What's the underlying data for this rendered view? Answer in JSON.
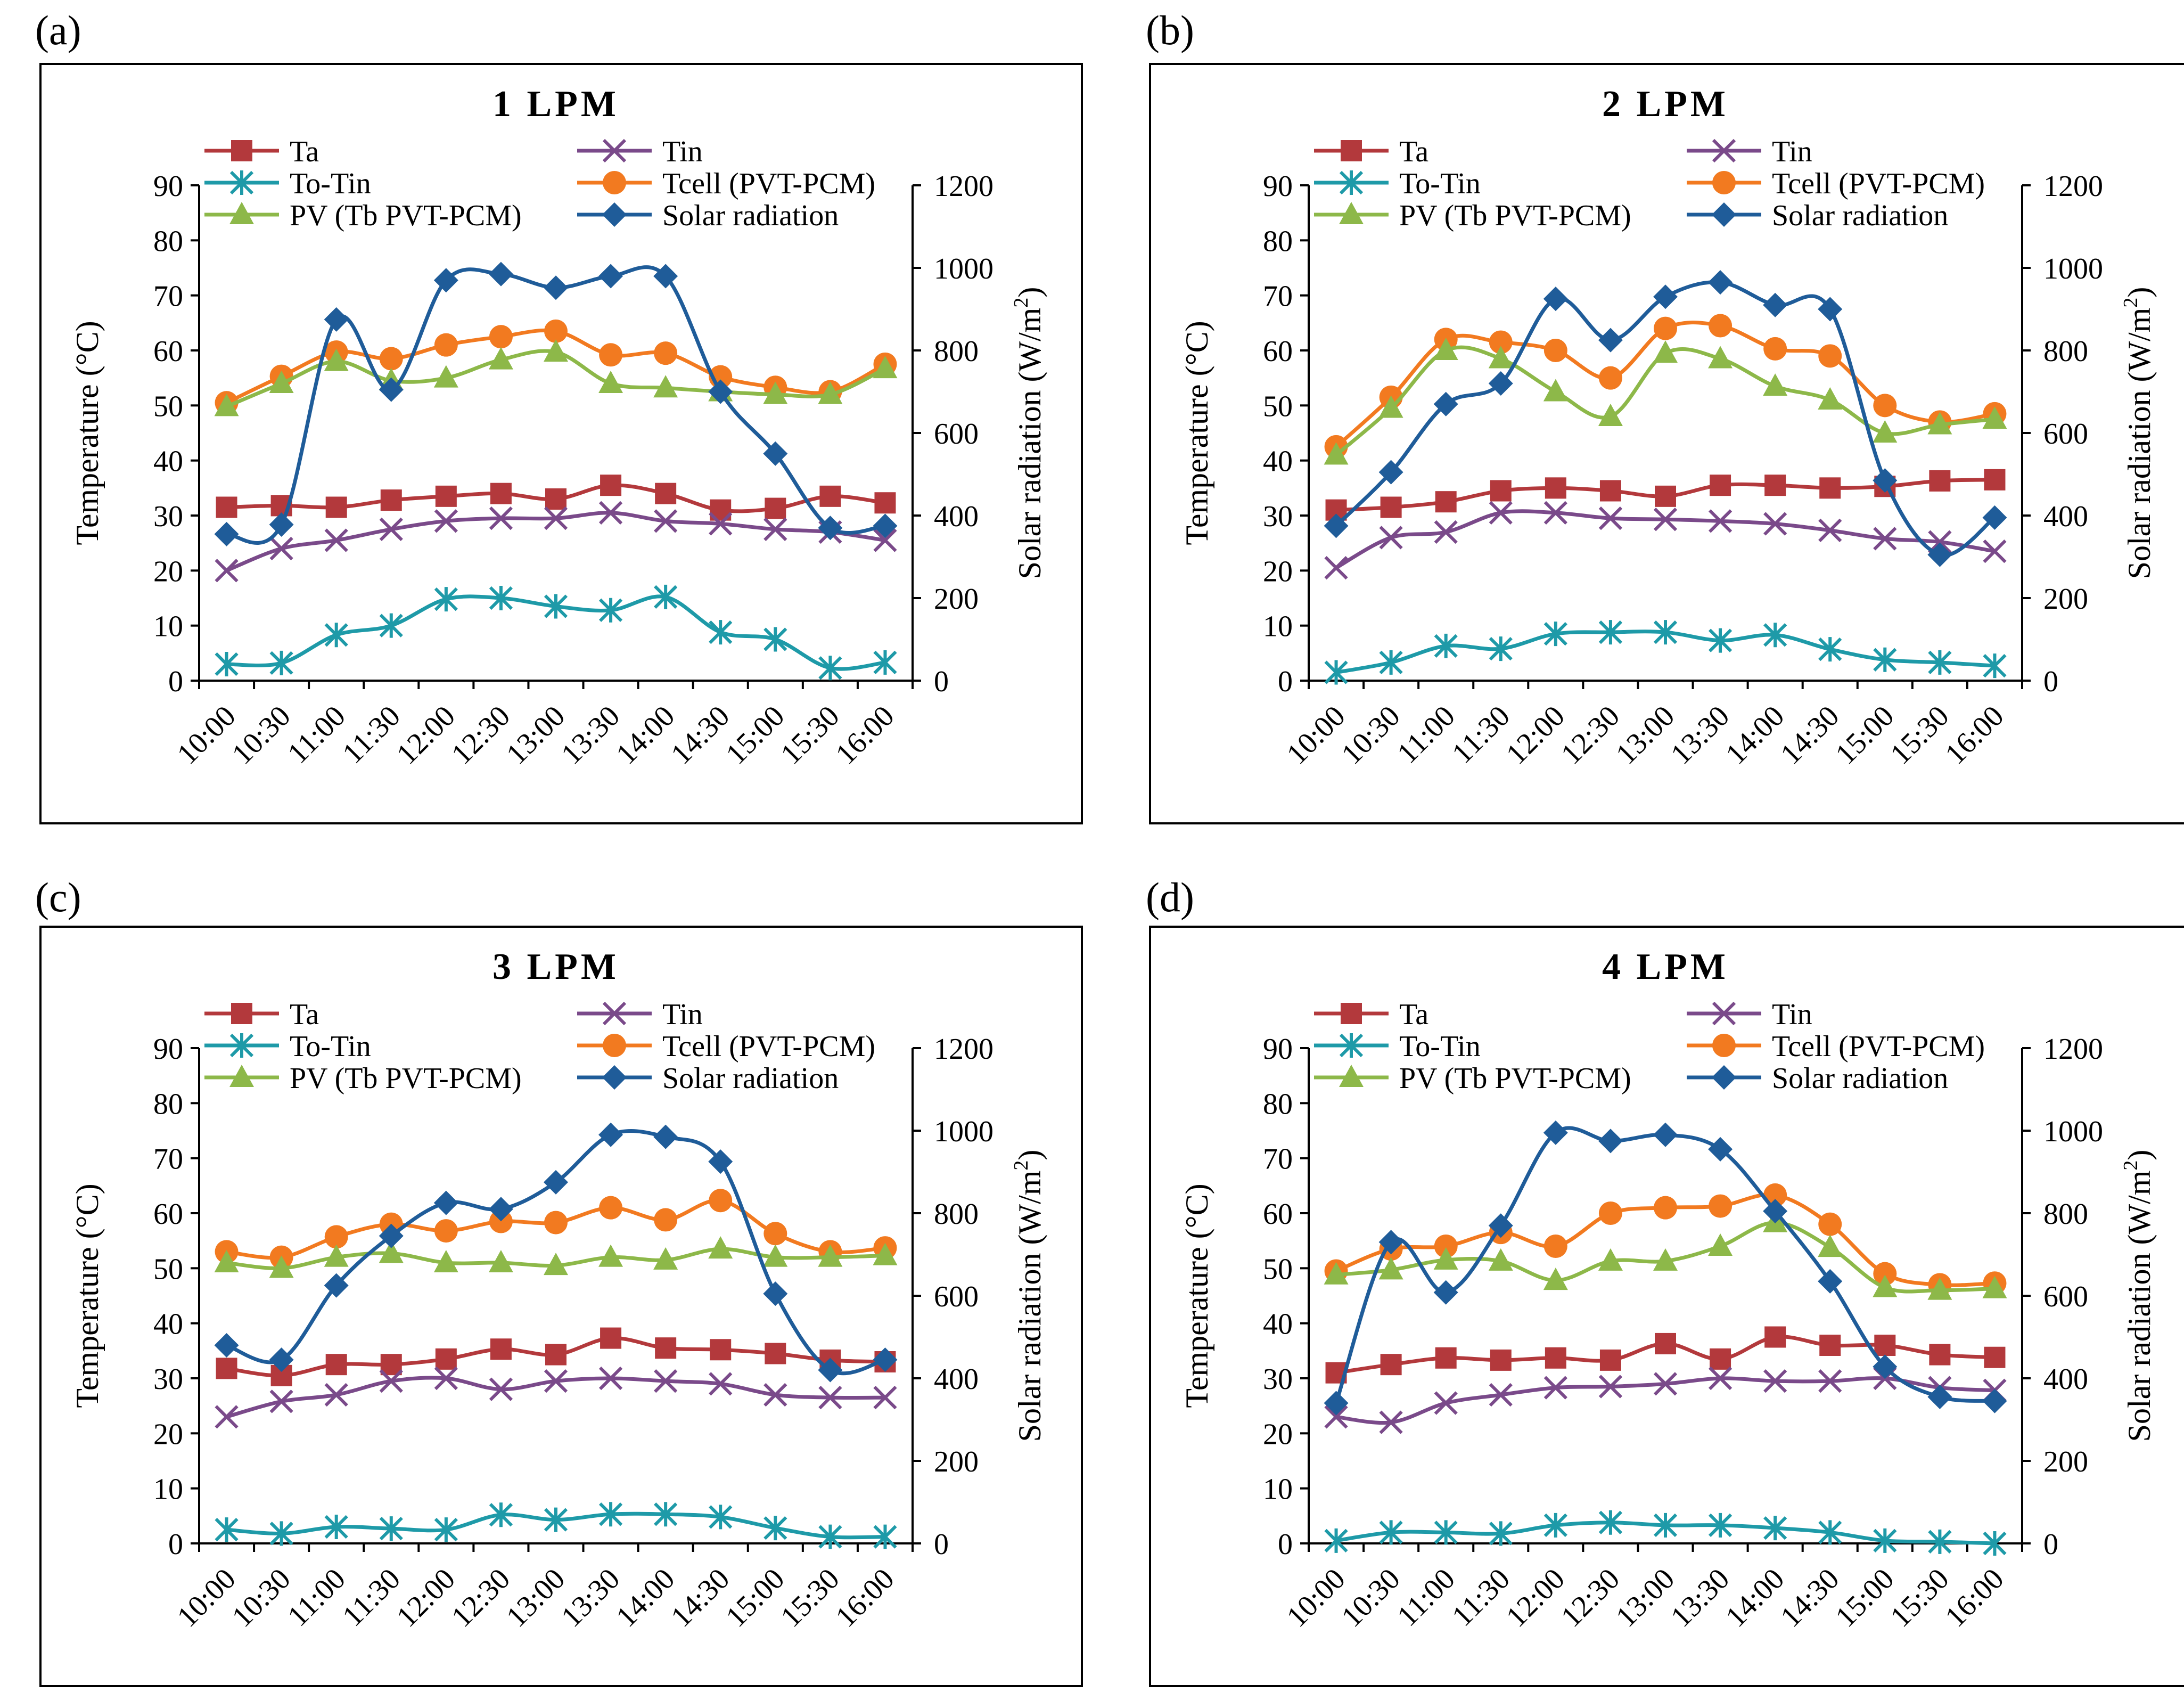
{
  "charts": [
    {
      "panel_label": "(a)",
      "title": "1 LPM",
      "ylabel_left": "Temperature (°C)",
      "ylabel_right_base": "Solar radiation (W/m",
      "ylabel_right_sup": "2",
      "ylabel_right_end": ")"
    },
    {
      "panel_label": "(b)",
      "title": "2 LPM",
      "ylabel_left": "Temperature (°C)",
      "ylabel_right_base": "Solar radiation (W/m",
      "ylabel_right_sup": "2",
      "ylabel_right_end": ")"
    },
    {
      "panel_label": "(c)",
      "title": "3 LPM",
      "ylabel_left": "Temperature (°C)",
      "ylabel_right_base": "Solar radiation (W/m",
      "ylabel_right_sup": "2",
      "ylabel_right_end": ")"
    },
    {
      "panel_label": "(d)",
      "title": "4 LPM",
      "ylabel_left": "Temperature (°C)",
      "ylabel_right_base": "Solar radiation (W/m",
      "ylabel_right_sup": "2",
      "ylabel_right_end": ")"
    }
  ],
  "chart_data": [
    {
      "type": "line",
      "title": "1 LPM",
      "categories": [
        "10:00",
        "10:30",
        "11:00",
        "11:30",
        "12:00",
        "12:30",
        "13:00",
        "13:30",
        "14:00",
        "14:30",
        "15:00",
        "15:30",
        "16:00"
      ],
      "ylabel": "Temperature (°C)",
      "ylim": [
        0,
        90
      ],
      "yticks": [
        0,
        10,
        20,
        30,
        40,
        50,
        60,
        70,
        80,
        90
      ],
      "y2label": "Solar radiation (W/m2)",
      "y2lim": [
        0,
        1200
      ],
      "y2ticks": [
        0,
        200,
        400,
        600,
        800,
        1000,
        1200
      ],
      "legend_position": "top",
      "series": [
        {
          "name": "Ta",
          "axis": "left",
          "color": "#B3393C",
          "marker": "square",
          "values": [
            31.5,
            31.8,
            31.5,
            32.8,
            33.5,
            34.0,
            33.0,
            35.5,
            34.0,
            31.0,
            31.3,
            33.5,
            32.3
          ]
        },
        {
          "name": "Tin",
          "axis": "left",
          "color": "#7A4A8A",
          "marker": "x",
          "values": [
            20.0,
            24.0,
            25.5,
            27.5,
            29.0,
            29.5,
            29.5,
            30.5,
            29.0,
            28.5,
            27.5,
            27.0,
            25.5
          ]
        },
        {
          "name": "To-Tin",
          "axis": "left",
          "color": "#1E9AA8",
          "marker": "star",
          "values": [
            3.0,
            3.2,
            8.3,
            10.0,
            14.8,
            15.0,
            13.5,
            12.8,
            15.2,
            8.8,
            7.5,
            2.3,
            3.3
          ]
        },
        {
          "name": "Tcell (PVT-PCM)",
          "axis": "left",
          "color": "#F27A20",
          "marker": "circle",
          "values": [
            50.5,
            55.3,
            59.7,
            58.5,
            61.0,
            62.5,
            63.5,
            59.2,
            59.5,
            55.2,
            53.3,
            52.5,
            57.5
          ]
        },
        {
          "name": "PV (Tb PVT-PCM)",
          "axis": "left",
          "color": "#8DB849",
          "marker": "triangle",
          "values": [
            49.8,
            54.0,
            58.0,
            54.5,
            55.0,
            58.3,
            59.7,
            54.0,
            53.2,
            52.5,
            52.0,
            52.0,
            56.7
          ]
        },
        {
          "name": "Solar radiation",
          "axis": "right",
          "color": "#1F5C99",
          "marker": "diamond",
          "values": [
            355,
            378,
            875,
            705,
            970,
            985,
            952,
            980,
            980,
            700,
            550,
            370,
            375
          ]
        }
      ]
    },
    {
      "type": "line",
      "title": "2 LPM",
      "categories": [
        "10:00",
        "10:30",
        "11:00",
        "11:30",
        "12:00",
        "12:30",
        "13:00",
        "13:30",
        "14:00",
        "14:30",
        "15:00",
        "15:30",
        "16:00"
      ],
      "ylabel": "Temperature (°C)",
      "ylim": [
        0,
        90
      ],
      "yticks": [
        0,
        10,
        20,
        30,
        40,
        50,
        60,
        70,
        80,
        90
      ],
      "y2label": "Solar radiation (W/m2)",
      "y2lim": [
        0,
        1200
      ],
      "y2ticks": [
        0,
        200,
        400,
        600,
        800,
        1000,
        1200
      ],
      "legend_position": "top",
      "series": [
        {
          "name": "Ta",
          "axis": "left",
          "color": "#B3393C",
          "marker": "square",
          "values": [
            31.0,
            31.5,
            32.5,
            34.5,
            35.0,
            34.5,
            33.5,
            35.5,
            35.5,
            35.0,
            35.3,
            36.3,
            36.5
          ]
        },
        {
          "name": "Tin",
          "axis": "left",
          "color": "#7A4A8A",
          "marker": "x",
          "values": [
            20.5,
            26.0,
            27.0,
            30.5,
            30.5,
            29.5,
            29.3,
            29.0,
            28.5,
            27.3,
            25.8,
            25.2,
            23.5
          ]
        },
        {
          "name": "To-Tin",
          "axis": "left",
          "color": "#1E9AA8",
          "marker": "star",
          "values": [
            1.5,
            3.3,
            6.3,
            5.8,
            8.5,
            8.8,
            8.8,
            7.3,
            8.3,
            5.7,
            3.8,
            3.3,
            2.7
          ]
        },
        {
          "name": "Tcell (PVT-PCM)",
          "axis": "left",
          "color": "#F27A20",
          "marker": "circle",
          "values": [
            42.5,
            51.5,
            62.0,
            61.5,
            60.0,
            55.0,
            64.0,
            64.5,
            60.3,
            59.0,
            50.0,
            47.0,
            48.5
          ]
        },
        {
          "name": "PV (Tb PVT-PCM)",
          "axis": "left",
          "color": "#8DB849",
          "marker": "triangle",
          "values": [
            41.0,
            49.5,
            60.0,
            58.5,
            52.5,
            48.0,
            59.5,
            58.5,
            53.5,
            51.0,
            45.0,
            46.5,
            47.5
          ]
        },
        {
          "name": "Solar radiation",
          "axis": "right",
          "color": "#1F5C99",
          "marker": "diamond",
          "values": [
            375,
            505,
            670,
            720,
            925,
            825,
            930,
            965,
            910,
            900,
            485,
            305,
            395
          ]
        }
      ]
    },
    {
      "type": "line",
      "title": "3 LPM",
      "categories": [
        "10:00",
        "10:30",
        "11:00",
        "11:30",
        "12:00",
        "12:30",
        "13:00",
        "13:30",
        "14:00",
        "14:30",
        "15:00",
        "15:30",
        "16:00"
      ],
      "ylabel": "Temperature (°C)",
      "ylim": [
        0,
        90
      ],
      "yticks": [
        0,
        10,
        20,
        30,
        40,
        50,
        60,
        70,
        80,
        90
      ],
      "y2label": "Solar radiation (W/m2)",
      "y2lim": [
        0,
        1200
      ],
      "y2ticks": [
        0,
        200,
        400,
        600,
        800,
        1000,
        1200
      ],
      "legend_position": "top",
      "series": [
        {
          "name": "Ta",
          "axis": "left",
          "color": "#B3393C",
          "marker": "square",
          "values": [
            31.8,
            30.5,
            32.5,
            32.5,
            33.5,
            35.3,
            34.3,
            37.3,
            35.5,
            35.2,
            34.5,
            33.3,
            33.0
          ]
        },
        {
          "name": "Tin",
          "axis": "left",
          "color": "#7A4A8A",
          "marker": "x",
          "values": [
            23.0,
            25.8,
            27.0,
            29.5,
            30.0,
            28.0,
            29.5,
            30.0,
            29.5,
            29.0,
            27.0,
            26.5,
            26.5
          ]
        },
        {
          "name": "To-Tin",
          "axis": "left",
          "color": "#1E9AA8",
          "marker": "star",
          "values": [
            2.5,
            1.8,
            3.0,
            2.7,
            2.5,
            5.2,
            4.3,
            5.3,
            5.3,
            4.8,
            2.8,
            1.2,
            1.2
          ]
        },
        {
          "name": "Tcell (PVT-PCM)",
          "axis": "left",
          "color": "#F27A20",
          "marker": "circle",
          "values": [
            53.0,
            52.0,
            55.7,
            58.0,
            56.8,
            58.5,
            58.3,
            61.0,
            58.8,
            62.3,
            56.3,
            53.0,
            53.7
          ]
        },
        {
          "name": "PV (Tb PVT-PCM)",
          "axis": "left",
          "color": "#8DB849",
          "marker": "triangle",
          "values": [
            51.0,
            50.0,
            52.0,
            52.7,
            51.0,
            51.0,
            50.5,
            52.0,
            51.5,
            53.5,
            52.0,
            52.0,
            52.3
          ]
        },
        {
          "name": "Solar radiation",
          "axis": "right",
          "color": "#1F5C99",
          "marker": "diamond",
          "values": [
            480,
            445,
            625,
            745,
            825,
            810,
            875,
            990,
            985,
            925,
            605,
            420,
            445
          ]
        }
      ]
    },
    {
      "type": "line",
      "title": "4 LPM",
      "categories": [
        "10:00",
        "10:30",
        "11:00",
        "11:30",
        "12:00",
        "12:30",
        "13:00",
        "13:30",
        "14:00",
        "14:30",
        "15:00",
        "15:30",
        "16:00"
      ],
      "ylabel": "Temperature (°C)",
      "ylim": [
        0,
        90
      ],
      "yticks": [
        0,
        10,
        20,
        30,
        40,
        50,
        60,
        70,
        80,
        90
      ],
      "y2label": "Solar radiation (W/m2)",
      "y2lim": [
        0,
        1200
      ],
      "y2ticks": [
        0,
        200,
        400,
        600,
        800,
        1000,
        1200
      ],
      "legend_position": "top",
      "series": [
        {
          "name": "Ta",
          "axis": "left",
          "color": "#B3393C",
          "marker": "square",
          "values": [
            31.0,
            32.5,
            33.7,
            33.3,
            33.7,
            33.3,
            36.3,
            33.5,
            37.5,
            36.0,
            36.0,
            34.3,
            33.8
          ]
        },
        {
          "name": "Tin",
          "axis": "left",
          "color": "#7A4A8A",
          "marker": "x",
          "values": [
            23.0,
            22.0,
            25.5,
            27.0,
            28.3,
            28.5,
            29.0,
            30.0,
            29.5,
            29.5,
            30.0,
            28.3,
            27.8
          ]
        },
        {
          "name": "To-Tin",
          "axis": "left",
          "color": "#1E9AA8",
          "marker": "star",
          "values": [
            0.5,
            2.0,
            2.0,
            1.8,
            3.3,
            3.8,
            3.3,
            3.3,
            2.8,
            2.0,
            0.5,
            0.3,
            0.0
          ]
        },
        {
          "name": "Tcell (PVT-PCM)",
          "axis": "left",
          "color": "#F27A20",
          "marker": "circle",
          "values": [
            49.5,
            53.5,
            54.0,
            56.5,
            54.0,
            60.0,
            61.0,
            61.3,
            63.3,
            58.0,
            49.0,
            47.0,
            47.3
          ]
        },
        {
          "name": "PV (Tb PVT-PCM)",
          "axis": "left",
          "color": "#8DB849",
          "marker": "triangle",
          "values": [
            48.8,
            49.7,
            51.5,
            51.3,
            47.8,
            51.3,
            51.3,
            54.0,
            58.3,
            53.8,
            46.5,
            46.0,
            46.3
          ]
        },
        {
          "name": "Solar radiation",
          "axis": "right",
          "color": "#1F5C99",
          "marker": "diamond",
          "values": [
            340,
            730,
            608,
            770,
            995,
            975,
            990,
            955,
            805,
            635,
            428,
            355,
            345
          ]
        }
      ]
    }
  ]
}
